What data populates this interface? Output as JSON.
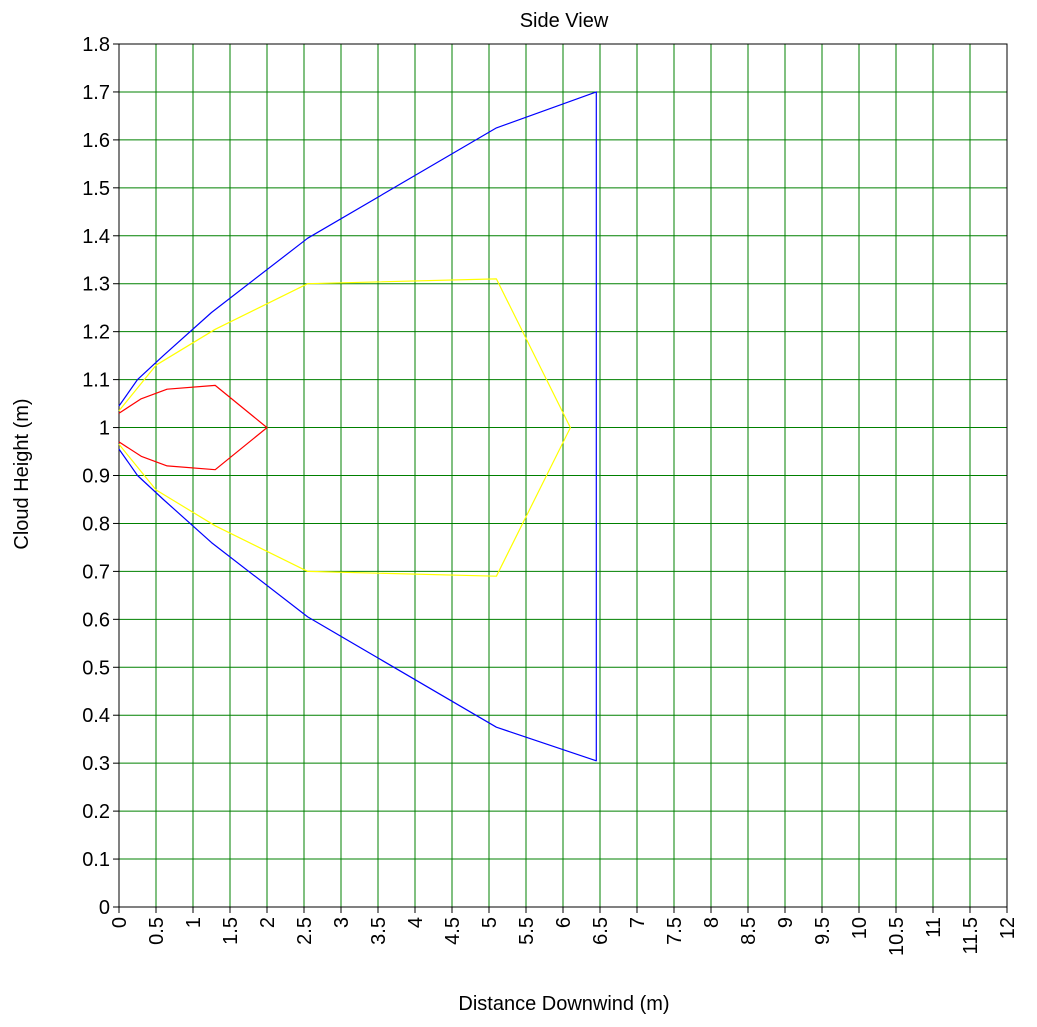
{
  "chart_data": {
    "type": "line",
    "title": "Side View",
    "xlabel": "Distance Downwind (m)",
    "ylabel": "Cloud Height (m)",
    "xlim": [
      0,
      12
    ],
    "ylim": [
      0,
      1.8
    ],
    "x_ticks": [
      "0",
      "0.5",
      "1",
      "1.5",
      "2",
      "2.5",
      "3",
      "3.5",
      "4",
      "4.5",
      "5",
      "5.5",
      "6",
      "6.5",
      "7",
      "7.5",
      "8",
      "8.5",
      "9",
      "9.5",
      "10",
      "10.5",
      "11",
      "11.5",
      "12"
    ],
    "y_ticks": [
      "0",
      "0.1",
      "0.2",
      "0.3",
      "0.4",
      "0.5",
      "0.6",
      "0.7",
      "0.8",
      "0.9",
      "1",
      "1.1",
      "1.2",
      "1.3",
      "1.4",
      "1.5",
      "1.6",
      "1.7",
      "1.8"
    ],
    "grid": true,
    "grid_color": "#008000",
    "series": [
      {
        "color": "#0000ff",
        "points": [
          [
            0,
            1.045
          ],
          [
            0.25,
            1.1
          ],
          [
            0.6,
            1.15
          ],
          [
            1.25,
            1.24
          ],
          [
            2.55,
            1.395
          ],
          [
            5.1,
            1.625
          ],
          [
            6.45,
            1.7
          ],
          [
            6.45,
            0.305
          ],
          [
            5.1,
            0.375
          ],
          [
            2.55,
            0.605
          ],
          [
            1.25,
            0.76
          ],
          [
            0.6,
            0.85
          ],
          [
            0.25,
            0.9
          ],
          [
            0,
            0.955
          ]
        ]
      },
      {
        "color": "#ffff00",
        "points": [
          [
            0,
            1.035
          ],
          [
            0.5,
            1.13
          ],
          [
            1.3,
            1.205
          ],
          [
            2.55,
            1.3
          ],
          [
            5.1,
            1.31
          ],
          [
            6.1,
            1.0
          ],
          [
            5.1,
            0.69
          ],
          [
            2.55,
            0.7
          ],
          [
            1.3,
            0.795
          ],
          [
            0.5,
            0.87
          ],
          [
            0,
            0.965
          ]
        ]
      },
      {
        "color": "#ff0000",
        "points": [
          [
            0,
            1.03
          ],
          [
            0.3,
            1.06
          ],
          [
            0.65,
            1.08
          ],
          [
            1.3,
            1.088
          ],
          [
            2.0,
            1.0
          ],
          [
            1.3,
            0.912
          ],
          [
            0.65,
            0.92
          ],
          [
            0.3,
            0.94
          ],
          [
            0,
            0.97
          ]
        ]
      }
    ]
  }
}
